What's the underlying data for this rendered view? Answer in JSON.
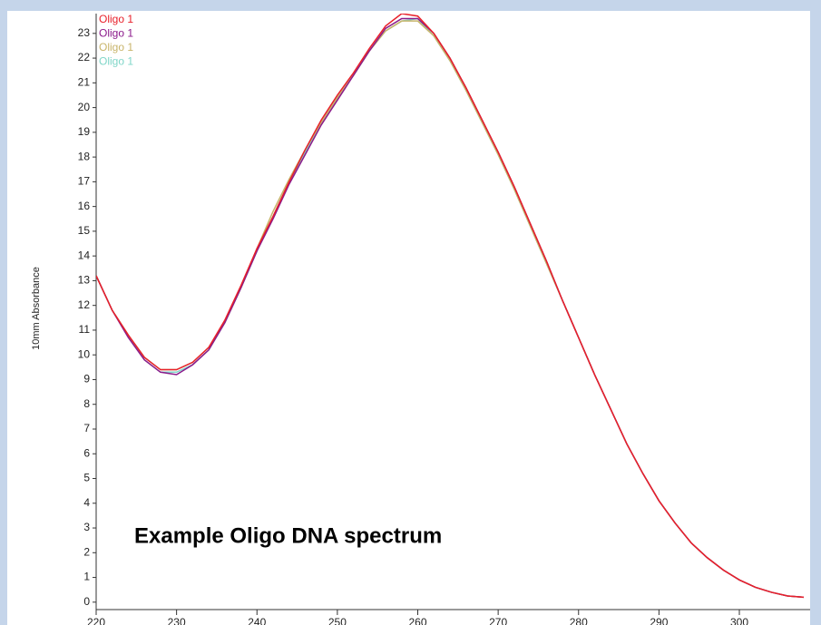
{
  "chart_data": {
    "type": "line",
    "y_label": "10mm Absorbance",
    "annotation": "Example Oligo DNA spectrum",
    "x": [
      220,
      222,
      224,
      226,
      228,
      230,
      232,
      234,
      236,
      238,
      240,
      242,
      244,
      246,
      248,
      250,
      252,
      254,
      256,
      258,
      260,
      262,
      264,
      266,
      268,
      270,
      272,
      274,
      276,
      278,
      280,
      282,
      284,
      286,
      288,
      290,
      292,
      294,
      296,
      298,
      300,
      302,
      304,
      306,
      308
    ],
    "series": [
      {
        "name": "Oligo 1",
        "color": "#7fd6c8",
        "values": [
          13.2,
          11.8,
          10.8,
          9.8,
          9.3,
          9.3,
          9.6,
          10.2,
          11.3,
          12.7,
          14.2,
          15.6,
          17.0,
          18.2,
          19.4,
          20.4,
          21.3,
          22.3,
          23.1,
          23.5,
          23.6,
          22.9,
          21.9,
          20.7,
          19.4,
          18.1,
          16.7,
          15.2,
          13.7,
          12.2,
          10.7,
          9.2,
          7.8,
          6.4,
          5.2,
          4.1,
          3.2,
          2.4,
          1.8,
          1.3,
          0.9,
          0.6,
          0.4,
          0.25,
          0.2
        ]
      },
      {
        "name": "Oligo 1",
        "color": "#c8b46a",
        "values": [
          13.2,
          11.8,
          10.8,
          9.9,
          9.4,
          9.4,
          9.7,
          10.3,
          11.3,
          12.7,
          14.3,
          15.8,
          17.1,
          18.3,
          19.4,
          20.4,
          21.3,
          22.3,
          23.1,
          23.5,
          23.5,
          22.9,
          21.9,
          20.7,
          19.4,
          18.1,
          16.7,
          15.2,
          13.7,
          12.2,
          10.7,
          9.2,
          7.8,
          6.4,
          5.2,
          4.1,
          3.2,
          2.4,
          1.8,
          1.3,
          0.9,
          0.6,
          0.4,
          0.25,
          0.2
        ]
      },
      {
        "name": "Oligo 1",
        "color": "#8b1a8b",
        "values": [
          13.2,
          11.8,
          10.7,
          9.8,
          9.3,
          9.2,
          9.6,
          10.2,
          11.3,
          12.7,
          14.2,
          15.5,
          16.9,
          18.1,
          19.3,
          20.3,
          21.3,
          22.3,
          23.2,
          23.6,
          23.6,
          23.0,
          22.0,
          20.8,
          19.5,
          18.2,
          16.8,
          15.3,
          13.8,
          12.2,
          10.7,
          9.2,
          7.8,
          6.4,
          5.2,
          4.1,
          3.2,
          2.4,
          1.8,
          1.3,
          0.9,
          0.6,
          0.4,
          0.25,
          0.2
        ]
      },
      {
        "name": "Oligo 1",
        "color": "#e8202a",
        "values": [
          13.2,
          11.8,
          10.8,
          9.9,
          9.4,
          9.4,
          9.7,
          10.3,
          11.4,
          12.8,
          14.3,
          15.6,
          17.0,
          18.3,
          19.5,
          20.5,
          21.4,
          22.4,
          23.3,
          23.8,
          23.7,
          23.0,
          22.0,
          20.8,
          19.5,
          18.2,
          16.8,
          15.3,
          13.8,
          12.2,
          10.7,
          9.2,
          7.8,
          6.4,
          5.2,
          4.1,
          3.2,
          2.4,
          1.8,
          1.3,
          0.9,
          0.6,
          0.4,
          0.25,
          0.2
        ]
      }
    ],
    "xlim": [
      220,
      308.8
    ],
    "xticks": [
      220,
      230,
      240,
      250,
      260,
      270,
      280,
      290,
      300
    ],
    "ylim": [
      -0.3,
      23.8
    ],
    "yticks": [
      0,
      1,
      2,
      3,
      4,
      5,
      6,
      7,
      8,
      9,
      10,
      11,
      12,
      13,
      14,
      15,
      16,
      17,
      18,
      19,
      20,
      21,
      22,
      23
    ]
  }
}
